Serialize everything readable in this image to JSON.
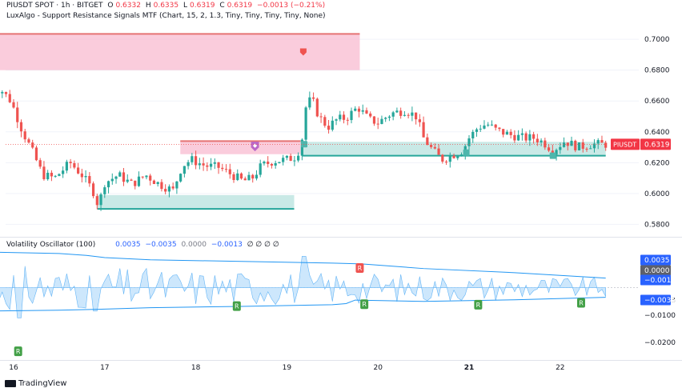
{
  "header": {
    "symbol": "PIUSDT SPOT · 1h · BITGET",
    "o_label": "O",
    "o": "0.6332",
    "h_label": "H",
    "h": "0.6335",
    "l_label": "L",
    "l": "0.6319",
    "c_label": "C",
    "c": "0.6319",
    "change": "−0.0013 (−0.21%)",
    "indicator": "LuxAlgo - Support Resistance Signals MTF (Chart, 15, 2, 1.3, Tiny, Tiny, Tiny, Tiny, None)"
  },
  "osc_header": {
    "name": "Volatility Oscillator (100)",
    "v1": "0.0035",
    "v2": "−0.0035",
    "v3": "0.0000",
    "v4": "−0.0013",
    "tail": "∅ ∅ ∅ ∅"
  },
  "watermark": "TradingView",
  "price_badge": {
    "symbol": "PIUSDT",
    "value": "0.6319"
  },
  "osc_badges": {
    "upper": "0.0035",
    "zero": "0.0000",
    "last": "−0.0013",
    "lower": "−0.0035"
  },
  "colors": {
    "up": "#26a69a",
    "down": "#ef5350",
    "osc_fill": "#90caf9",
    "band": "#2196f3",
    "res_zone": "#f8bbd0",
    "sup_zone": "#b2dfdb"
  },
  "chart_data": [
    {
      "type": "candlestick",
      "x_ticks": [
        "16",
        "17",
        "18",
        "19",
        "20",
        "21",
        "22"
      ],
      "y_ticks": [
        "0.7000",
        "0.6800",
        "0.6600",
        "0.6400",
        "0.6200",
        "0.6000",
        "0.5800"
      ],
      "ylim": [
        0.574,
        0.712
      ],
      "last_price": 0.6319,
      "zones": [
        {
          "kind": "resistance",
          "x_start": 15.75,
          "x_end": 19.8,
          "low": 0.68,
          "high": 0.7035
        },
        {
          "kind": "resistance",
          "x_start": 17.83,
          "x_end": 19.15,
          "low": 0.6255,
          "high": 0.634
        },
        {
          "kind": "support",
          "x_start": 16.92,
          "x_end": 19.08,
          "low": 0.59,
          "high": 0.599
        },
        {
          "kind": "support",
          "x_start": 19.17,
          "x_end": 22.5,
          "low": 0.6245,
          "high": 0.6335
        }
      ],
      "signal_markers": [
        {
          "kind": "resistance",
          "x": 19.18,
          "price": 0.692
        },
        {
          "kind": "breakout",
          "x": 18.65,
          "price": 0.6305
        },
        {
          "kind": "support",
          "x": 19.19,
          "price": 0.632
        },
        {
          "kind": "support",
          "x": 20.97,
          "price": 0.6265
        },
        {
          "kind": "support",
          "x": 21.92,
          "price": 0.6245
        }
      ],
      "trend_points": [
        [
          15.75,
          0.665
        ],
        [
          15.85,
          0.668
        ],
        [
          15.97,
          0.66
        ],
        [
          16.1,
          0.64
        ],
        [
          16.2,
          0.628
        ],
        [
          16.32,
          0.612
        ],
        [
          16.45,
          0.61
        ],
        [
          16.62,
          0.62
        ],
        [
          16.75,
          0.612
        ],
        [
          16.87,
          0.602
        ],
        [
          16.93,
          0.592
        ],
        [
          17.0,
          0.607
        ],
        [
          17.15,
          0.612
        ],
        [
          17.3,
          0.606
        ],
        [
          17.45,
          0.612
        ],
        [
          17.6,
          0.606
        ],
        [
          17.75,
          0.602
        ],
        [
          17.85,
          0.618
        ],
        [
          17.95,
          0.622
        ],
        [
          18.1,
          0.618
        ],
        [
          18.25,
          0.617
        ],
        [
          18.4,
          0.612
        ],
        [
          18.52,
          0.608
        ],
        [
          18.62,
          0.61
        ],
        [
          18.72,
          0.618
        ],
        [
          18.85,
          0.621
        ],
        [
          19.0,
          0.622
        ],
        [
          19.1,
          0.624
        ],
        [
          19.16,
          0.632
        ],
        [
          19.2,
          0.655
        ],
        [
          19.27,
          0.662
        ],
        [
          19.35,
          0.65
        ],
        [
          19.45,
          0.643
        ],
        [
          19.55,
          0.648
        ],
        [
          19.65,
          0.649
        ],
        [
          19.78,
          0.656
        ],
        [
          19.9,
          0.648
        ],
        [
          20.0,
          0.646
        ],
        [
          20.15,
          0.652
        ],
        [
          20.3,
          0.654
        ],
        [
          20.42,
          0.65
        ],
        [
          20.5,
          0.636
        ],
        [
          20.6,
          0.628
        ],
        [
          20.7,
          0.622
        ],
        [
          20.82,
          0.625
        ],
        [
          20.93,
          0.628
        ],
        [
          21.0,
          0.636
        ],
        [
          21.1,
          0.643
        ],
        [
          21.2,
          0.645
        ],
        [
          21.3,
          0.641
        ],
        [
          21.45,
          0.638
        ],
        [
          21.6,
          0.636
        ],
        [
          21.72,
          0.636
        ],
        [
          21.82,
          0.633
        ],
        [
          21.92,
          0.628
        ],
        [
          22.05,
          0.634
        ],
        [
          22.2,
          0.63
        ],
        [
          22.35,
          0.632
        ],
        [
          22.5,
          0.6319
        ]
      ]
    },
    {
      "type": "area",
      "name": "Volatility Oscillator (100)",
      "x_ticks": [
        "16",
        "17",
        "18",
        "19",
        "20",
        "21",
        "22"
      ],
      "y_ticks": [
        "0.0035",
        "-0.0013",
        "-0.0100",
        "-0.0200"
      ],
      "ylim": [
        -0.0255,
        0.0145
      ],
      "upper_band": [
        [
          15.75,
          0.013
        ],
        [
          16.5,
          0.0125
        ],
        [
          16.8,
          0.0118
        ],
        [
          17.0,
          0.011
        ],
        [
          17.5,
          0.0102
        ],
        [
          18.5,
          0.0096
        ],
        [
          19.5,
          0.009
        ],
        [
          19.82,
          0.0087
        ],
        [
          20.5,
          0.007
        ],
        [
          21.5,
          0.0055
        ],
        [
          22.5,
          0.0035
        ]
      ],
      "lower_band": [
        [
          15.75,
          -0.0085
        ],
        [
          16.5,
          -0.0082
        ],
        [
          17.0,
          -0.0078
        ],
        [
          17.5,
          -0.0073
        ],
        [
          18.5,
          -0.0068
        ],
        [
          19.5,
          -0.0062
        ],
        [
          19.65,
          -0.0058
        ],
        [
          19.75,
          -0.0045
        ],
        [
          20.5,
          -0.005
        ],
        [
          21.5,
          -0.0044
        ],
        [
          22.5,
          -0.0035
        ]
      ],
      "signal_labels": [
        {
          "text": "R",
          "x": 16.05,
          "value": -0.0232
        },
        {
          "text": "R",
          "x": 18.45,
          "value": -0.0067
        },
        {
          "text": "R",
          "x": 19.8,
          "value": 0.0072
        },
        {
          "text": "R",
          "x": 19.85,
          "value": -0.006
        },
        {
          "text": "R",
          "x": 21.1,
          "value": -0.0062
        },
        {
          "text": "R",
          "x": 22.23,
          "value": -0.0055
        }
      ]
    }
  ]
}
